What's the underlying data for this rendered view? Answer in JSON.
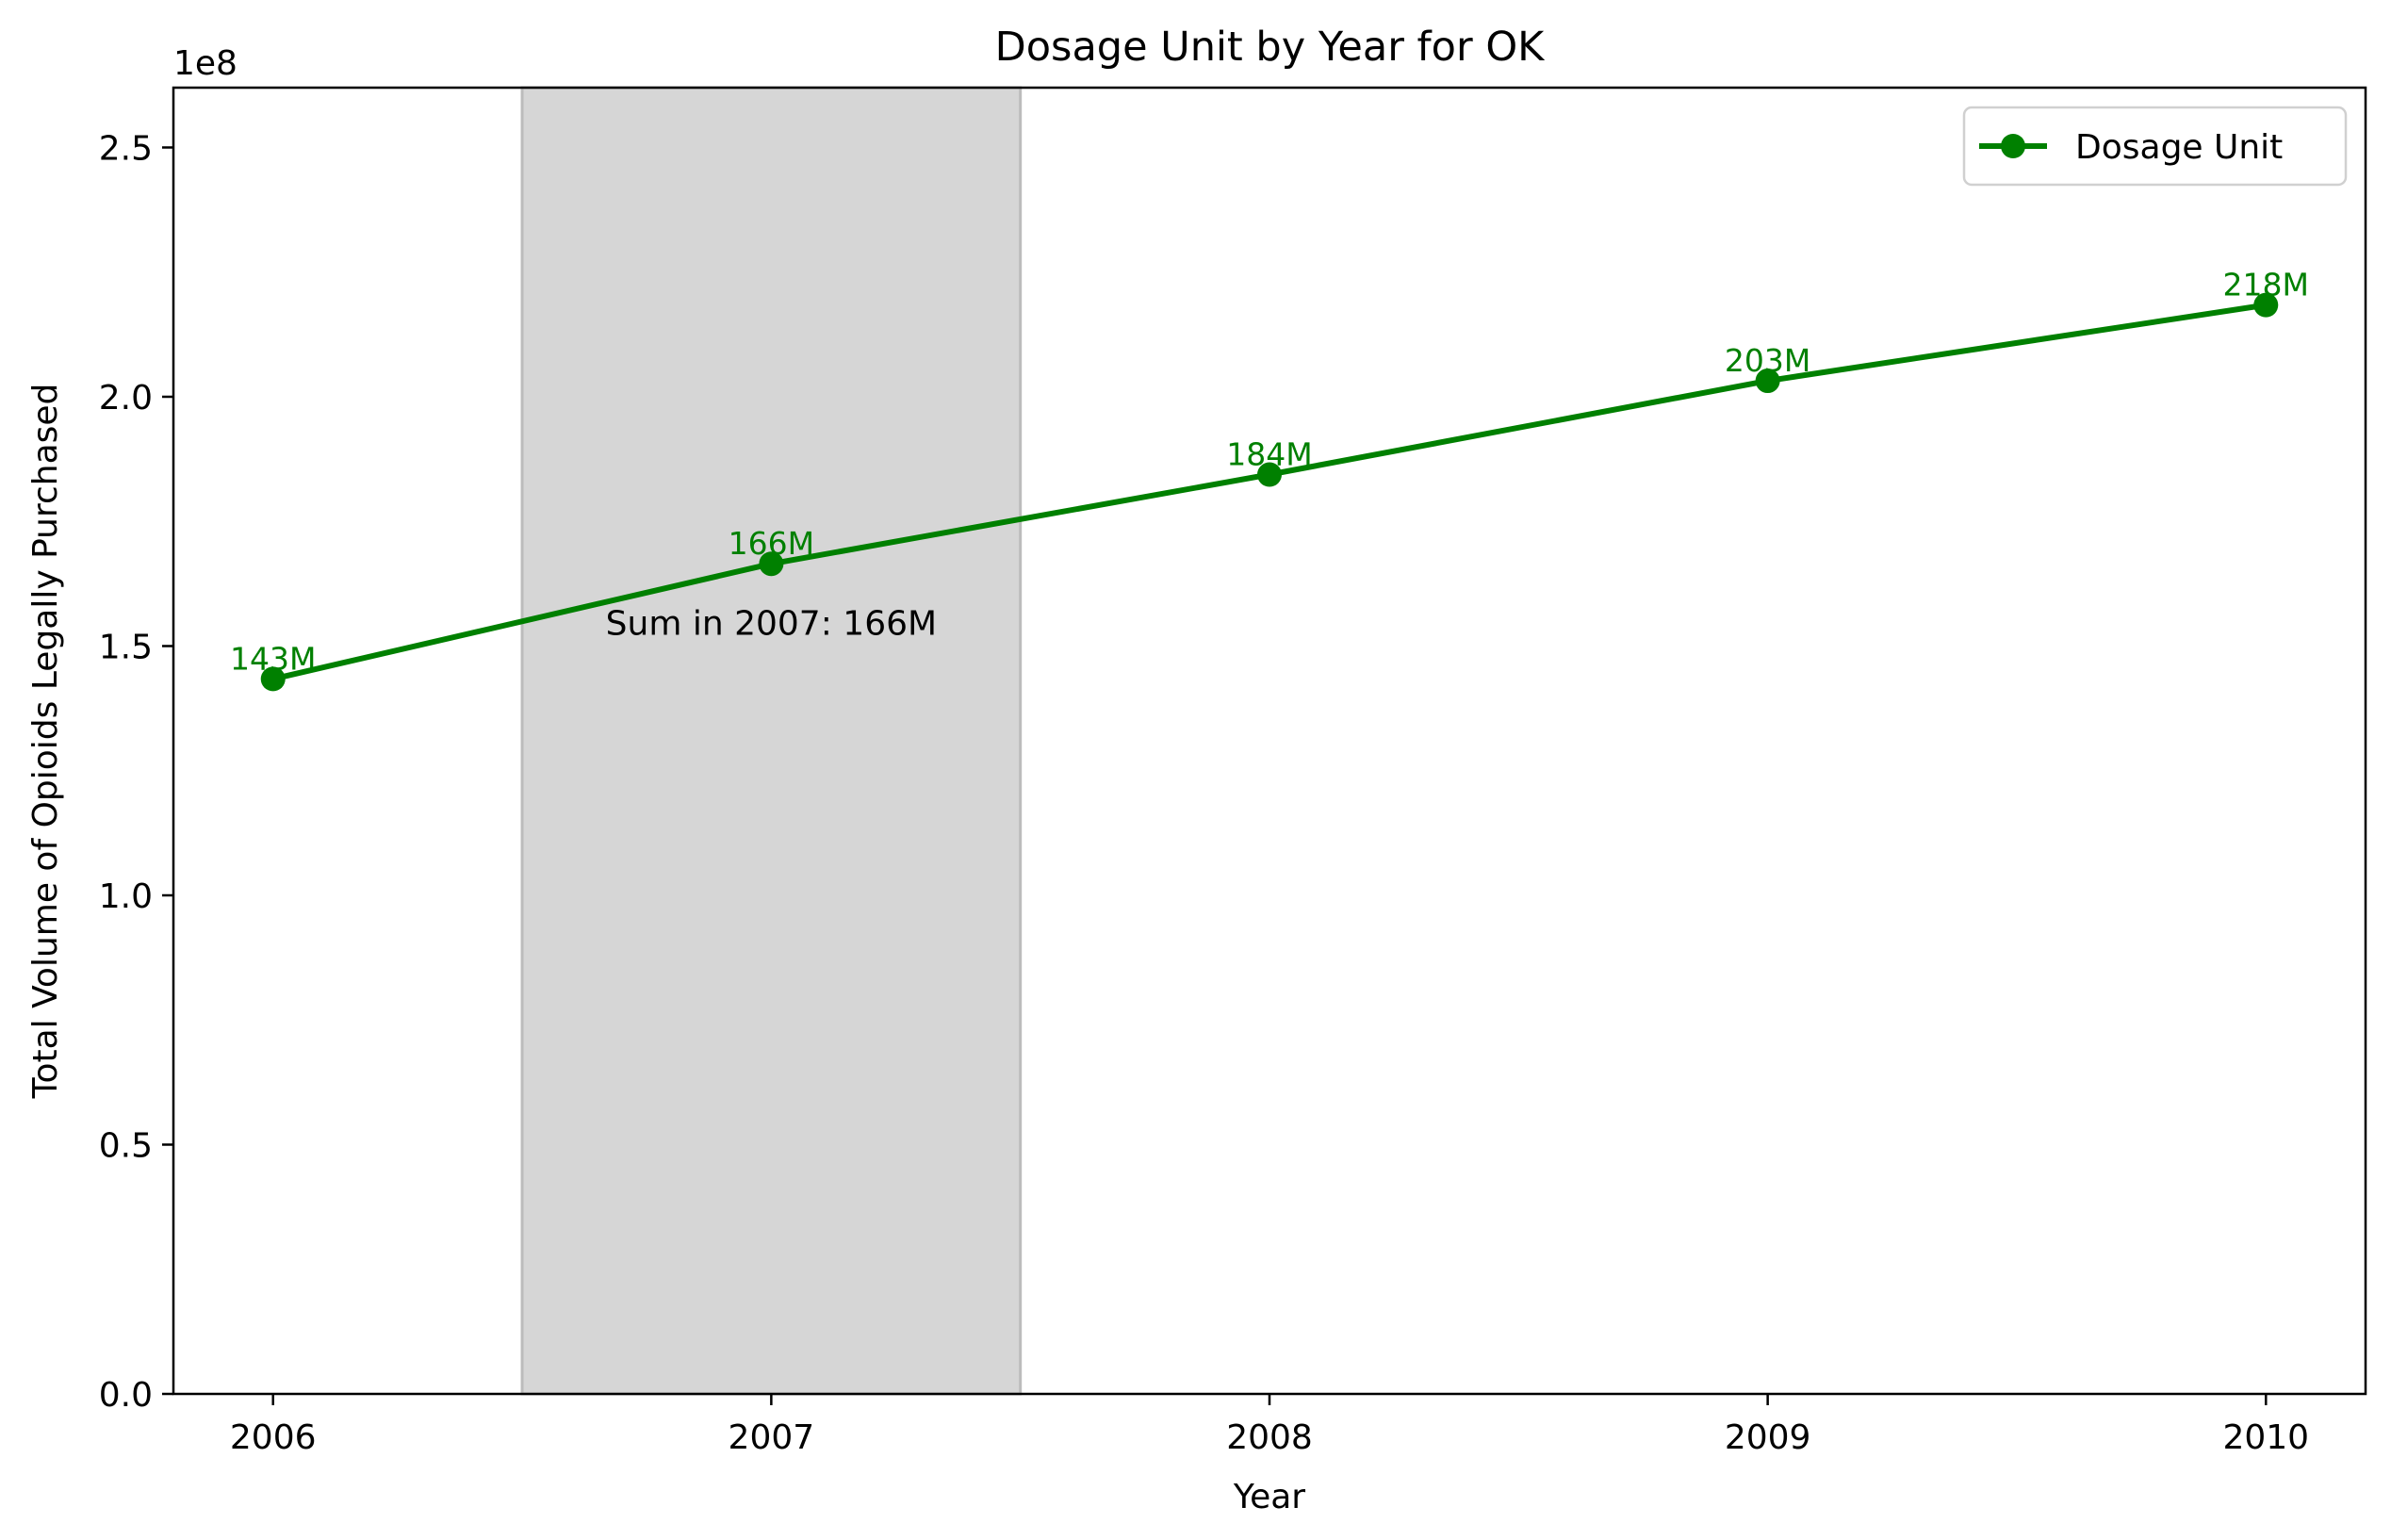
{
  "chart_data": {
    "type": "line",
    "title": "Dosage Unit by Year for OK",
    "xlabel": "Year",
    "ylabel": "Total Volume of Opioids Legally Purchased",
    "y_offset_label": "1e8",
    "x": [
      2006,
      2007,
      2008,
      2009,
      2010
    ],
    "xticks": [
      "2006",
      "2007",
      "2008",
      "2009",
      "2010"
    ],
    "xlim": [
      2005.8,
      2010.2
    ],
    "ylim": [
      0,
      262000000
    ],
    "yticks": [
      {
        "value": 0,
        "label": "0.0"
      },
      {
        "value": 50000000,
        "label": "0.5"
      },
      {
        "value": 100000000,
        "label": "1.0"
      },
      {
        "value": 150000000,
        "label": "1.5"
      },
      {
        "value": 200000000,
        "label": "2.0"
      },
      {
        "value": 250000000,
        "label": "2.5"
      }
    ],
    "series": [
      {
        "name": "Dosage Unit",
        "color": "#008000",
        "values": [
          143400000,
          166500000,
          184400000,
          203200000,
          218400000
        ],
        "labels": [
          "143M",
          "166M",
          "184M",
          "203M",
          "218M"
        ]
      }
    ],
    "highlight": {
      "x_range": [
        2006.5,
        2007.5
      ],
      "color": "#d6d6d6",
      "annotation": "Sum in 2007: 166M",
      "annotation_x": 2007,
      "annotation_y": 150000000
    },
    "legend": {
      "position": "top-right"
    },
    "grid": false
  }
}
